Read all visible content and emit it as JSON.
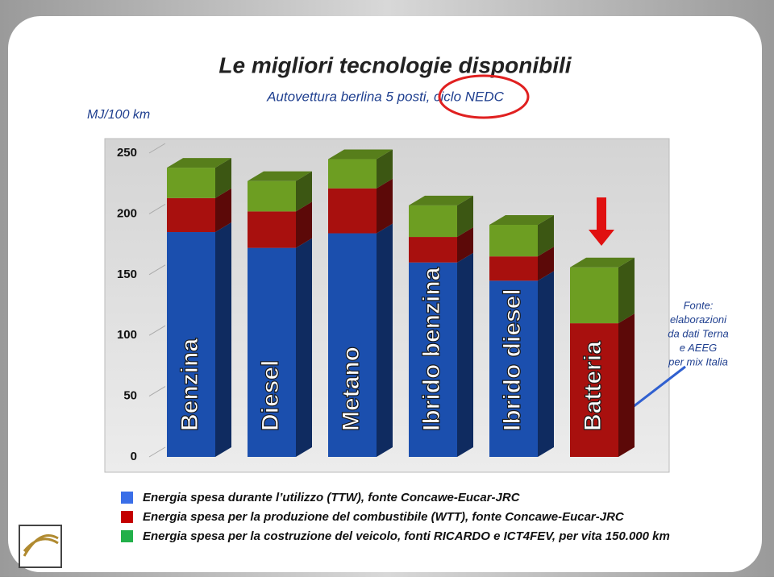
{
  "chart_data": {
    "type": "stacked-bar-3d",
    "title": "Le migliori tecnologie disponibili",
    "subtitle": "Autovettura berlina 5 posti, ciclo NEDC",
    "y_label": "MJ/100 km",
    "note": [
      "Fonte:",
      "elaborazioni",
      "da dati Terna",
      "e AEEG",
      "per mix Italia"
    ],
    "categories": [
      "Benzina",
      "Diesel",
      "Metano",
      "Ibrido benzina",
      "Ibrido diesel",
      "Batteria"
    ],
    "series": [
      {
        "name": "Energia spesa durante l’utilizzo (TTW), fonte Concawe-Eucar-JRC",
        "color": "#1b4fae",
        "legend_color": "#3a6ee8",
        "values": [
          185,
          172,
          184,
          160,
          145,
          0
        ]
      },
      {
        "name": "Energia spesa per la produzione del combustibile (WTT), fonte Concawe-Eucar-JRC",
        "color": "#a8100e",
        "legend_color": "#c40000",
        "values": [
          28,
          30,
          37,
          21,
          20,
          110
        ]
      },
      {
        "name": "Energia spesa per la costruzione del veicolo, fonti RICARDO e ICT4FEV, per vita 150.000 km",
        "color": "#6d9e22",
        "legend_color": "#22b04a",
        "values": [
          25,
          25,
          24,
          26,
          26,
          46
        ]
      }
    ],
    "ylim": [
      0,
      250
    ],
    "yticks": [
      0,
      50,
      100,
      150,
      200,
      250
    ],
    "grid": true
  }
}
